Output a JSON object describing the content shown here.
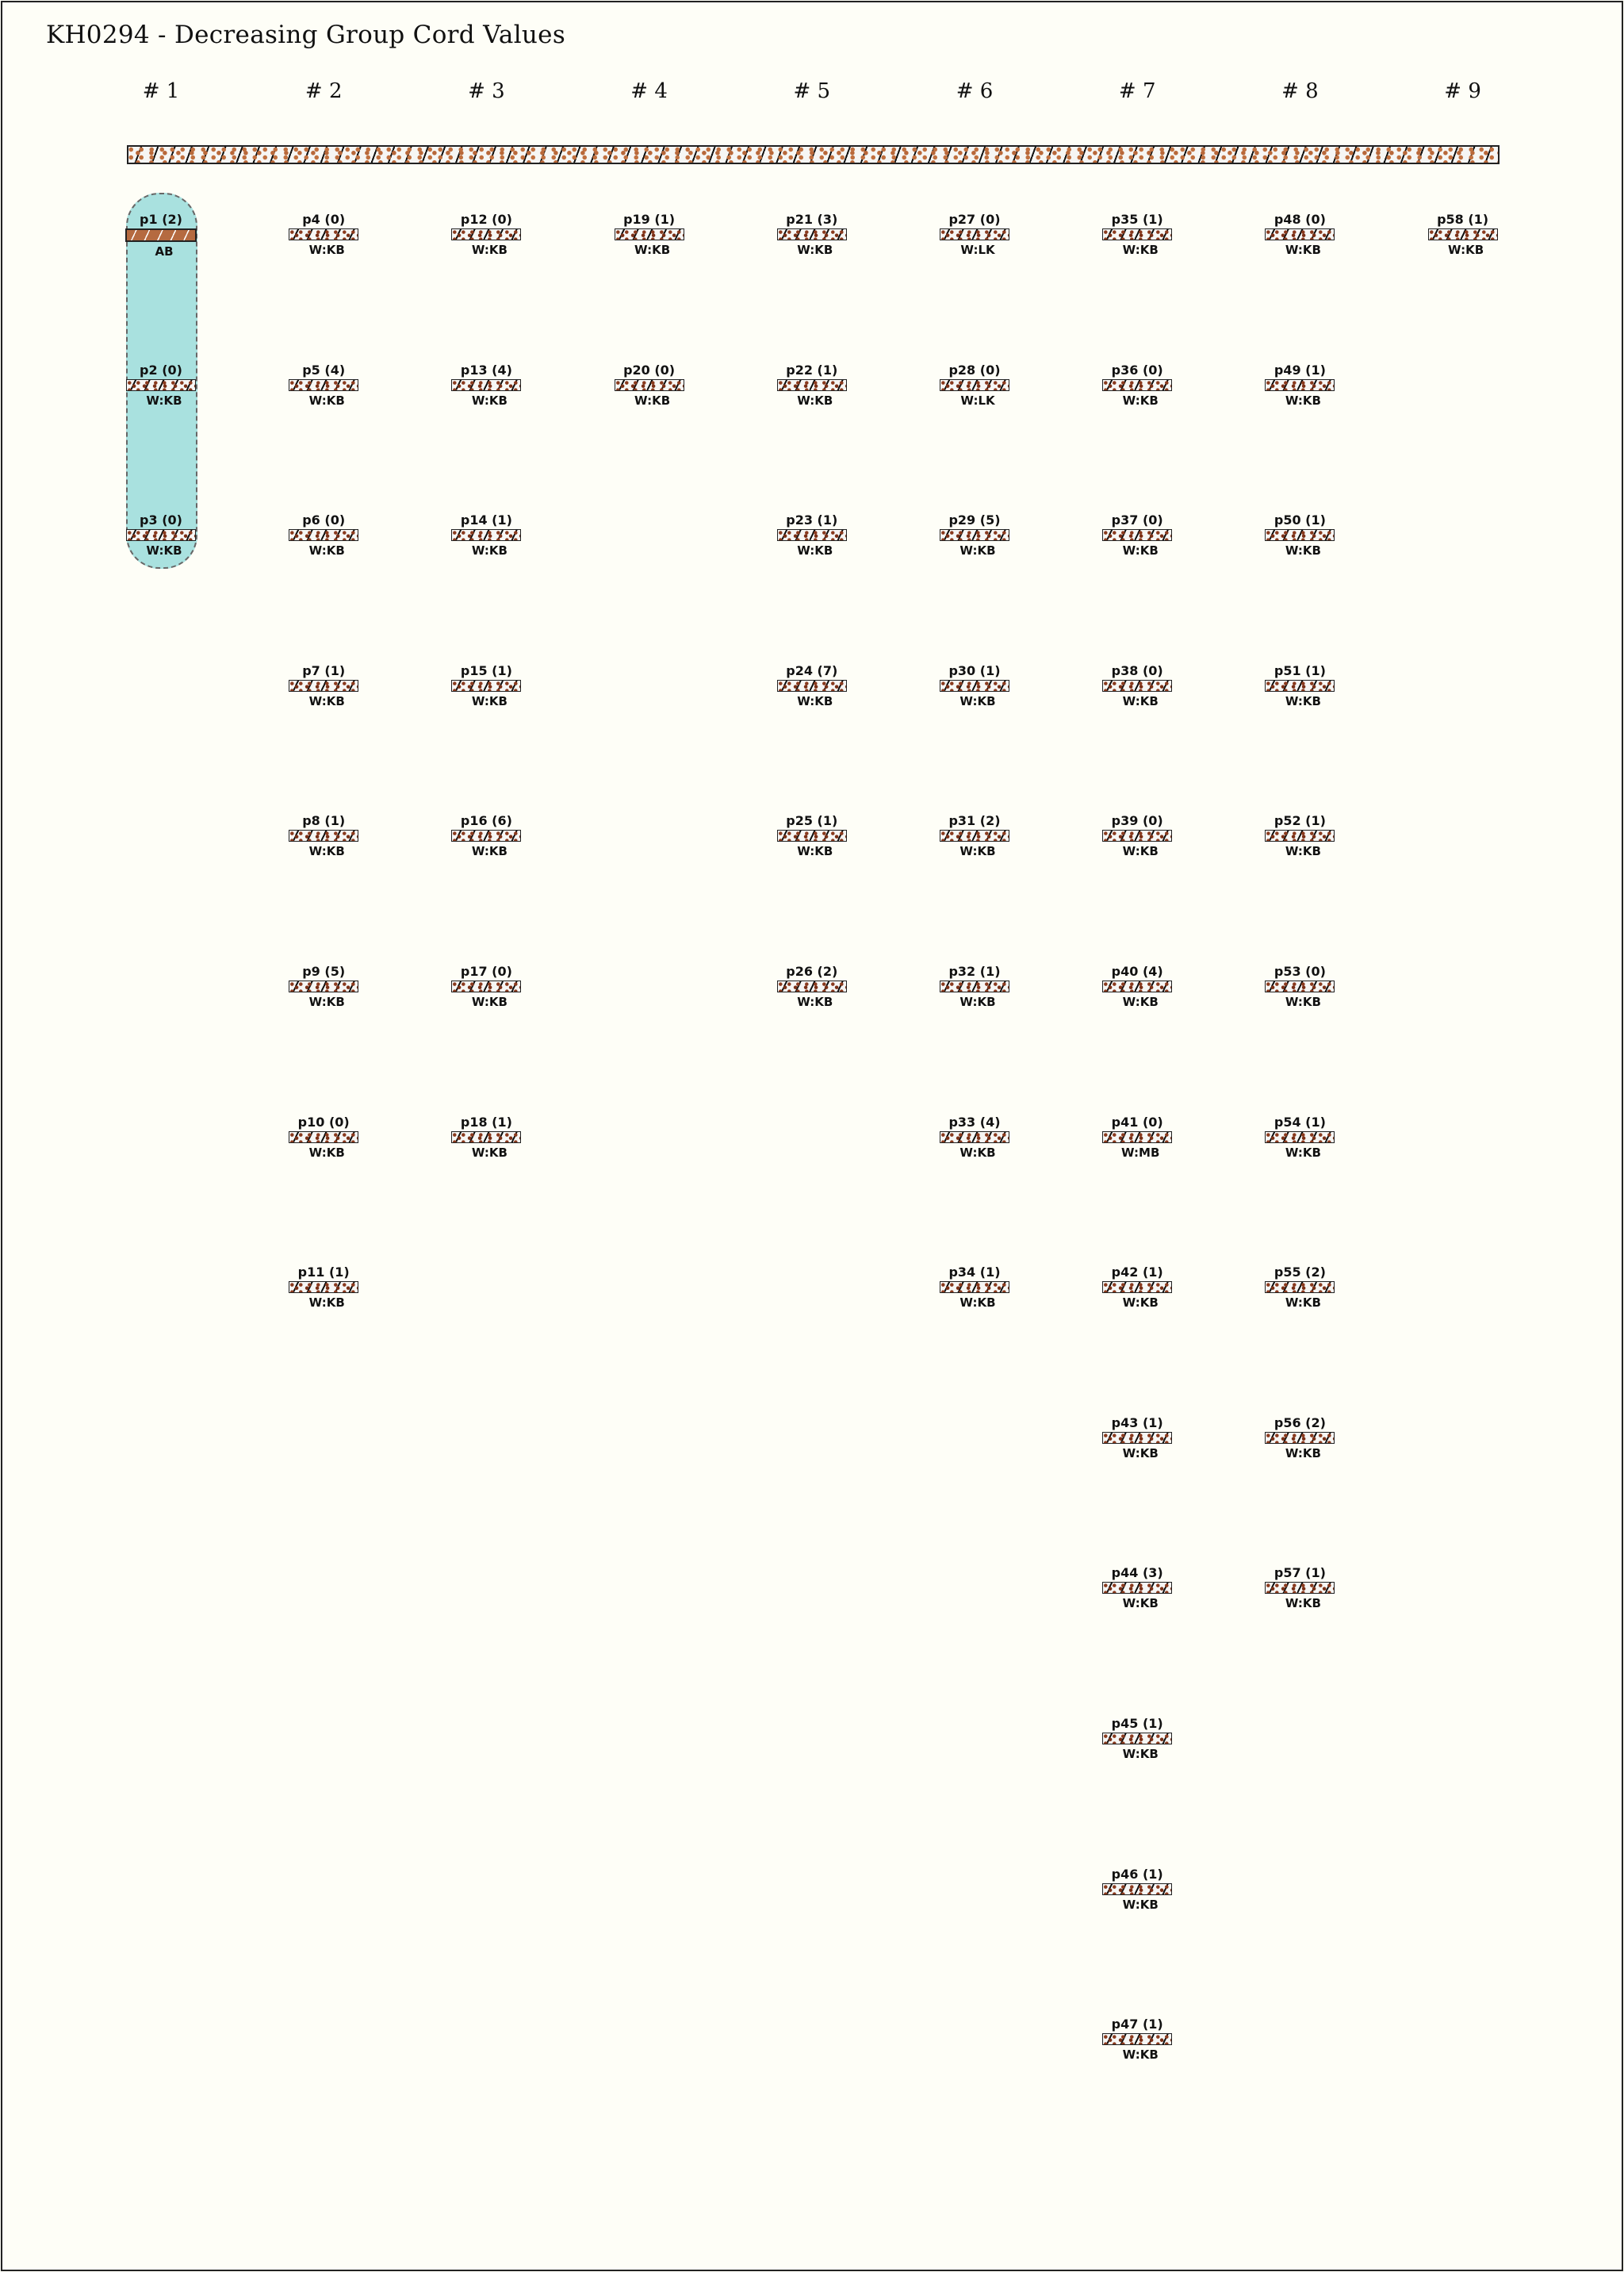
{
  "title": "KH0294 - Decreasing Group Cord Values",
  "colors": {
    "background": "#fefef7",
    "group_highlight": "#a9e1df",
    "brown": "#b56a40",
    "dots": "#8a3a1e"
  },
  "groups": [
    {
      "label": "# 1",
      "highlighted": true,
      "cords": [
        {
          "label": "p1 (2)",
          "color": "AB"
        },
        {
          "label": "p2 (0)",
          "color": "W:KB"
        },
        {
          "label": "p3 (0)",
          "color": "W:KB"
        }
      ]
    },
    {
      "label": "# 2",
      "cords": [
        {
          "label": "p4 (0)",
          "color": "W:KB"
        },
        {
          "label": "p5 (4)",
          "color": "W:KB"
        },
        {
          "label": "p6 (0)",
          "color": "W:KB"
        },
        {
          "label": "p7 (1)",
          "color": "W:KB"
        },
        {
          "label": "p8 (1)",
          "color": "W:KB"
        },
        {
          "label": "p9 (5)",
          "color": "W:KB"
        },
        {
          "label": "p10 (0)",
          "color": "W:KB"
        },
        {
          "label": "p11 (1)",
          "color": "W:KB"
        }
      ]
    },
    {
      "label": "# 3",
      "cords": [
        {
          "label": "p12 (0)",
          "color": "W:KB"
        },
        {
          "label": "p13 (4)",
          "color": "W:KB"
        },
        {
          "label": "p14 (1)",
          "color": "W:KB"
        },
        {
          "label": "p15 (1)",
          "color": "W:KB"
        },
        {
          "label": "p16 (6)",
          "color": "W:KB"
        },
        {
          "label": "p17 (0)",
          "color": "W:KB"
        },
        {
          "label": "p18 (1)",
          "color": "W:KB"
        }
      ]
    },
    {
      "label": "# 4",
      "cords": [
        {
          "label": "p19 (1)",
          "color": "W:KB"
        },
        {
          "label": "p20 (0)",
          "color": "W:KB"
        }
      ]
    },
    {
      "label": "# 5",
      "cords": [
        {
          "label": "p21 (3)",
          "color": "W:KB"
        },
        {
          "label": "p22 (1)",
          "color": "W:KB"
        },
        {
          "label": "p23 (1)",
          "color": "W:KB"
        },
        {
          "label": "p24 (7)",
          "color": "W:KB"
        },
        {
          "label": "p25 (1)",
          "color": "W:KB"
        },
        {
          "label": "p26 (2)",
          "color": "W:KB"
        }
      ]
    },
    {
      "label": "# 6",
      "cords": [
        {
          "label": "p27 (0)",
          "color": "W:LK"
        },
        {
          "label": "p28 (0)",
          "color": "W:LK"
        },
        {
          "label": "p29 (5)",
          "color": "W:KB"
        },
        {
          "label": "p30 (1)",
          "color": "W:KB"
        },
        {
          "label": "p31 (2)",
          "color": "W:KB"
        },
        {
          "label": "p32 (1)",
          "color": "W:KB"
        },
        {
          "label": "p33 (4)",
          "color": "W:KB"
        },
        {
          "label": "p34 (1)",
          "color": "W:KB"
        }
      ]
    },
    {
      "label": "# 7",
      "cords": [
        {
          "label": "p35 (1)",
          "color": "W:KB"
        },
        {
          "label": "p36 (0)",
          "color": "W:KB"
        },
        {
          "label": "p37 (0)",
          "color": "W:KB"
        },
        {
          "label": "p38 (0)",
          "color": "W:KB"
        },
        {
          "label": "p39 (0)",
          "color": "W:KB"
        },
        {
          "label": "p40 (4)",
          "color": "W:KB"
        },
        {
          "label": "p41 (0)",
          "color": "W:MB"
        },
        {
          "label": "p42 (1)",
          "color": "W:KB"
        },
        {
          "label": "p43 (1)",
          "color": "W:KB"
        },
        {
          "label": "p44 (3)",
          "color": "W:KB"
        },
        {
          "label": "p45 (1)",
          "color": "W:KB"
        },
        {
          "label": "p46 (1)",
          "color": "W:KB"
        },
        {
          "label": "p47 (1)",
          "color": "W:KB"
        }
      ]
    },
    {
      "label": "# 8",
      "cords": [
        {
          "label": "p48 (0)",
          "color": "W:KB"
        },
        {
          "label": "p49 (1)",
          "color": "W:KB"
        },
        {
          "label": "p50 (1)",
          "color": "W:KB"
        },
        {
          "label": "p51 (1)",
          "color": "W:KB"
        },
        {
          "label": "p52 (1)",
          "color": "W:KB"
        },
        {
          "label": "p53 (0)",
          "color": "W:KB"
        },
        {
          "label": "p54 (1)",
          "color": "W:KB"
        },
        {
          "label": "p55 (2)",
          "color": "W:KB"
        },
        {
          "label": "p56 (2)",
          "color": "W:KB"
        },
        {
          "label": "p57 (1)",
          "color": "W:KB"
        }
      ]
    },
    {
      "label": "# 9",
      "cords": [
        {
          "label": "p58 (1)",
          "color": "W:KB"
        }
      ]
    }
  ]
}
